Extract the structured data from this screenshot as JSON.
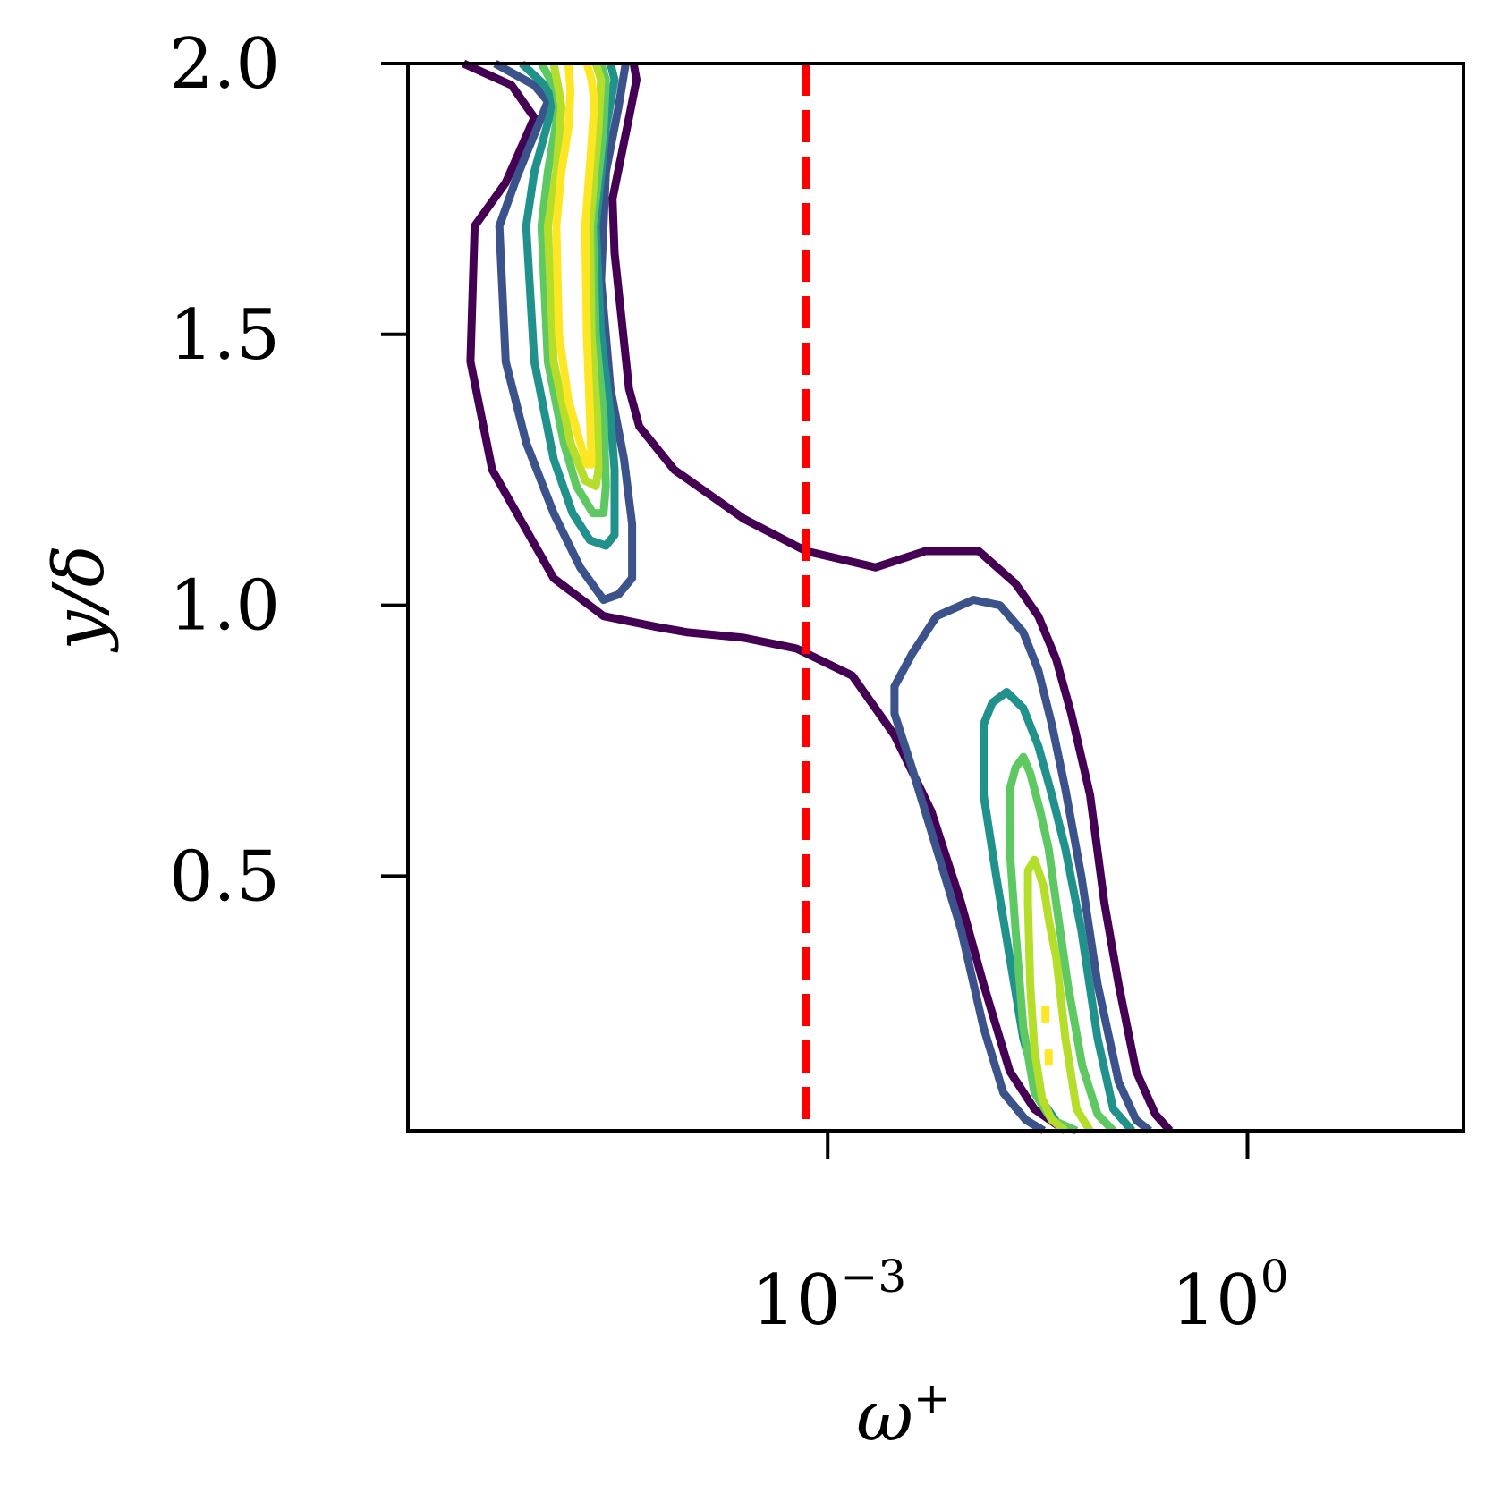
{
  "chart_data": {
    "type": "contour",
    "xlabel": "ω",
    "xlabel_sup": "+",
    "ylabel": "y/δ",
    "xscale": "log",
    "xlim": [
      1e-06,
      35
    ],
    "ylim": [
      0.03,
      2.0
    ],
    "yticks": [
      {
        "value": 0.5,
        "label": "0.5"
      },
      {
        "value": 1.0,
        "label": "1.0"
      },
      {
        "value": 1.5,
        "label": "1.5"
      },
      {
        "value": 2.0,
        "label": "2.0"
      }
    ],
    "xticks": [
      {
        "value": 0.001,
        "base": "10",
        "exp": "−3"
      },
      {
        "value": 1,
        "base": "10",
        "exp": "0"
      }
    ],
    "reference_line": {
      "x": 0.0007,
      "color": "#ff0000",
      "style": "dashed"
    },
    "grid": false,
    "legend": "none",
    "levels": [
      {
        "color": "#440154",
        "contours": [
          [
            [
              2.5e-06,
              2.0
            ],
            [
              5.5e-06,
              1.96
            ],
            [
              8e-06,
              1.9
            ],
            [
              5e-06,
              1.78
            ],
            [
              3e-06,
              1.7
            ],
            [
              2.8e-06,
              1.45
            ],
            [
              4e-06,
              1.25
            ],
            [
              1.1e-05,
              1.05
            ],
            [
              2.5e-05,
              0.98
            ],
            [
              6e-05,
              0.96
            ],
            [
              0.0001,
              0.95
            ],
            [
              0.00025,
              0.94
            ],
            [
              0.0006,
              0.92
            ],
            [
              0.0015,
              0.87
            ],
            [
              0.003,
              0.76
            ],
            [
              0.0055,
              0.62
            ],
            [
              0.009,
              0.45
            ],
            [
              0.013,
              0.3
            ],
            [
              0.02,
              0.14
            ],
            [
              0.03,
              0.07
            ],
            [
              0.05,
              0.03
            ]
          ],
          [
            [
              0.28,
              0.03
            ],
            [
              0.22,
              0.06
            ],
            [
              0.16,
              0.14
            ],
            [
              0.12,
              0.3
            ],
            [
              0.095,
              0.45
            ],
            [
              0.075,
              0.65
            ],
            [
              0.055,
              0.8
            ],
            [
              0.043,
              0.9
            ],
            [
              0.032,
              0.98
            ],
            [
              0.022,
              1.04
            ],
            [
              0.012,
              1.1
            ],
            [
              0.005,
              1.1
            ],
            [
              0.0022,
              1.07
            ],
            [
              0.0007,
              1.1
            ],
            [
              0.00025,
              1.16
            ],
            [
              8e-05,
              1.25
            ],
            [
              4.5e-05,
              1.33
            ],
            [
              3.8e-05,
              1.4
            ],
            [
              3e-05,
              1.65
            ],
            [
              2.9e-05,
              1.75
            ],
            [
              3.8e-05,
              1.9
            ],
            [
              4.3e-05,
              1.97
            ],
            [
              4.1e-05,
              2.0
            ]
          ]
        ]
      },
      {
        "color": "#3b528b",
        "contours": [
          [
            [
              4.2e-06,
              2.0
            ],
            [
              8e-06,
              1.96
            ],
            [
              1e-05,
              1.93
            ],
            [
              6e-06,
              1.79
            ],
            [
              4.5e-06,
              1.7
            ],
            [
              5e-06,
              1.45
            ],
            [
              7e-06,
              1.3
            ],
            [
              1.1e-05,
              1.17
            ],
            [
              1.7e-05,
              1.07
            ],
            [
              2.5e-05,
              1.01
            ],
            [
              3.2e-05,
              1.02
            ],
            [
              4e-05,
              1.05
            ],
            [
              4e-05,
              1.15
            ],
            [
              3.5e-05,
              1.27
            ],
            [
              2.8e-05,
              1.4
            ],
            [
              2.4e-05,
              1.6
            ],
            [
              2.6e-05,
              1.8
            ],
            [
              3.2e-05,
              1.92
            ],
            [
              3.6e-05,
              2.0
            ]
          ],
          [
            [
              0.2,
              0.03
            ],
            [
              0.16,
              0.05
            ],
            [
              0.12,
              0.12
            ],
            [
              0.085,
              0.3
            ],
            [
              0.065,
              0.5
            ],
            [
              0.05,
              0.66
            ],
            [
              0.04,
              0.78
            ],
            [
              0.032,
              0.88
            ],
            [
              0.025,
              0.95
            ],
            [
              0.017,
              1.0
            ],
            [
              0.011,
              1.01
            ],
            [
              0.006,
              0.98
            ],
            [
              0.004,
              0.91
            ],
            [
              0.003,
              0.85
            ],
            [
              0.003,
              0.8
            ],
            [
              0.004,
              0.7
            ],
            [
              0.006,
              0.55
            ],
            [
              0.009,
              0.4
            ],
            [
              0.013,
              0.22
            ],
            [
              0.018,
              0.1
            ],
            [
              0.026,
              0.05
            ],
            [
              0.035,
              0.03
            ]
          ]
        ]
      },
      {
        "color": "#21918c",
        "contours": [
          [
            [
              6.5e-06,
              2.0
            ],
            [
              9.5e-06,
              1.96
            ],
            [
              1.1e-05,
              1.93
            ],
            [
              8e-06,
              1.8
            ],
            [
              7e-06,
              1.7
            ],
            [
              8e-06,
              1.45
            ],
            [
              1.1e-05,
              1.27
            ],
            [
              1.5e-05,
              1.17
            ],
            [
              2e-05,
              1.12
            ],
            [
              2.6e-05,
              1.11
            ],
            [
              3e-05,
              1.13
            ],
            [
              3e-05,
              1.25
            ],
            [
              2.8e-05,
              1.35
            ],
            [
              2.4e-05,
              1.5
            ],
            [
              2.2e-05,
              1.7
            ],
            [
              2.6e-05,
              1.88
            ],
            [
              3e-05,
              1.97
            ],
            [
              2.8e-05,
              2.0
            ]
          ],
          [
            [
              0.15,
              0.03
            ],
            [
              0.11,
              0.07
            ],
            [
              0.085,
              0.2
            ],
            [
              0.065,
              0.4
            ],
            [
              0.05,
              0.55
            ],
            [
              0.04,
              0.65
            ],
            [
              0.032,
              0.74
            ],
            [
              0.025,
              0.81
            ],
            [
              0.019,
              0.84
            ],
            [
              0.015,
              0.82
            ],
            [
              0.013,
              0.78
            ],
            [
              0.013,
              0.65
            ],
            [
              0.016,
              0.5
            ],
            [
              0.02,
              0.35
            ],
            [
              0.025,
              0.2
            ],
            [
              0.033,
              0.09
            ],
            [
              0.045,
              0.04
            ],
            [
              0.06,
              0.03
            ]
          ]
        ]
      },
      {
        "color": "#5ec962",
        "contours": [
          [
            [
              9e-06,
              2.0
            ],
            [
              1.15e-05,
              1.95
            ],
            [
              1.2e-05,
              1.92
            ],
            [
              1e-05,
              1.8
            ],
            [
              9e-06,
              1.7
            ],
            [
              1e-05,
              1.45
            ],
            [
              1.3e-05,
              1.3
            ],
            [
              1.6e-05,
              1.22
            ],
            [
              2.1e-05,
              1.17
            ],
            [
              2.5e-05,
              1.17
            ],
            [
              2.6e-05,
              1.22
            ],
            [
              2.5e-05,
              1.35
            ],
            [
              2.2e-05,
              1.5
            ],
            [
              2.1e-05,
              1.7
            ],
            [
              2.5e-05,
              1.88
            ],
            [
              2.6e-05,
              1.97
            ],
            [
              2.4e-05,
              2.0
            ]
          ],
          [
            [
              0.11,
              0.03
            ],
            [
              0.085,
              0.06
            ],
            [
              0.066,
              0.15
            ],
            [
              0.052,
              0.3
            ],
            [
              0.043,
              0.45
            ],
            [
              0.038,
              0.55
            ],
            [
              0.033,
              0.62
            ],
            [
              0.028,
              0.69
            ],
            [
              0.025,
              0.72
            ],
            [
              0.022,
              0.7
            ],
            [
              0.02,
              0.66
            ],
            [
              0.02,
              0.55
            ],
            [
              0.022,
              0.4
            ],
            [
              0.025,
              0.22
            ],
            [
              0.03,
              0.1
            ],
            [
              0.04,
              0.05
            ],
            [
              0.06,
              0.03
            ]
          ]
        ]
      },
      {
        "color": "#b5de2b",
        "contours": [
          [
            [
              1.1e-05,
              2.0
            ],
            [
              1.2e-05,
              1.95
            ],
            [
              1.25e-05,
              1.92
            ],
            [
              1.15e-05,
              1.8
            ],
            [
              1e-05,
              1.7
            ],
            [
              1.1e-05,
              1.45
            ],
            [
              1.45e-05,
              1.3
            ],
            [
              1.85e-05,
              1.23
            ],
            [
              2.2e-05,
              1.22
            ],
            [
              2.3e-05,
              1.25
            ],
            [
              2.25e-05,
              1.35
            ],
            [
              2.05e-05,
              1.5
            ],
            [
              2e-05,
              1.7
            ],
            [
              2.3e-05,
              1.88
            ],
            [
              2.4e-05,
              1.97
            ],
            [
              2.2e-05,
              2.0
            ]
          ],
          [
            [
              0.075,
              0.03
            ],
            [
              0.06,
              0.07
            ],
            [
              0.05,
              0.2
            ],
            [
              0.043,
              0.35
            ],
            [
              0.038,
              0.42
            ],
            [
              0.035,
              0.48
            ],
            [
              0.032,
              0.51
            ],
            [
              0.03,
              0.53
            ],
            [
              0.027,
              0.51
            ],
            [
              0.027,
              0.45
            ],
            [
              0.028,
              0.3
            ],
            [
              0.03,
              0.18
            ],
            [
              0.034,
              0.09
            ],
            [
              0.04,
              0.05
            ],
            [
              0.05,
              0.03
            ]
          ]
        ]
      },
      {
        "color": "#fde725",
        "contours": [
          [
            [
              1.4e-05,
              2.0
            ],
            [
              1.45e-05,
              1.95
            ],
            [
              1.4e-05,
              1.88
            ],
            [
              1.25e-05,
              1.8
            ],
            [
              1.15e-05,
              1.7
            ],
            [
              1.2e-05,
              1.5
            ],
            [
              1.4e-05,
              1.38
            ],
            [
              1.7e-05,
              1.3
            ],
            [
              1.9e-05,
              1.26
            ],
            [
              2.05e-05,
              1.26
            ],
            [
              2e-05,
              1.35
            ],
            [
              1.9e-05,
              1.5
            ],
            [
              1.85e-05,
              1.7
            ],
            [
              2.05e-05,
              1.85
            ],
            [
              2.15e-05,
              1.93
            ],
            [
              2.05e-05,
              1.97
            ],
            [
              1.9e-05,
              2.0
            ]
          ],
          [
            [
              0.036,
              0.26
            ],
            [
              0.036,
              0.23
            ]
          ],
          [
            [
              0.038,
              0.18
            ],
            [
              0.038,
              0.15
            ]
          ]
        ]
      }
    ]
  }
}
